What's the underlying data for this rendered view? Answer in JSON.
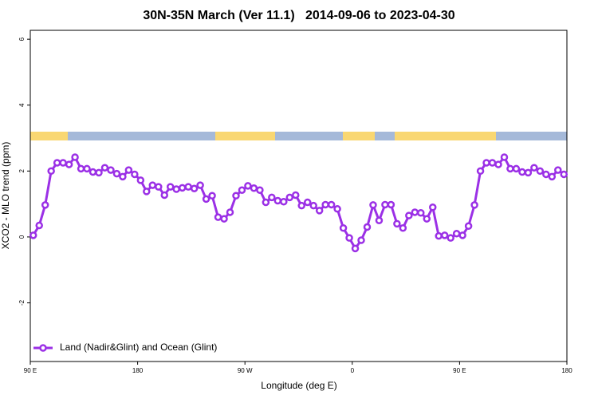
{
  "chart_data": {
    "type": "line",
    "title": "30N-35N March (Ver 11.1)   2014-09-06 to 2023-04-30",
    "x_label": "Longitude (deg E)",
    "y_label": "XCO2 - MLO trend (ppm)",
    "x": [
      92.5,
      97.5,
      102.5,
      107.5,
      112.5,
      117.5,
      122.5,
      127.5,
      132.5,
      137.5,
      142.5,
      147.5,
      152.5,
      157.5,
      162.5,
      167.5,
      172.5,
      177.5,
      182.5,
      187.5,
      192.5,
      197.5,
      202.5,
      207.5,
      212.5,
      217.5,
      222.5,
      227.5,
      232.5,
      237.5,
      242.5,
      247.5,
      252.5,
      257.5,
      262.5,
      267.5,
      272.5,
      277.5,
      282.5,
      287.5,
      292.5,
      297.5,
      302.5,
      307.5,
      312.5,
      317.5,
      322.5,
      327.5,
      332.5,
      337.5,
      342.5,
      347.5,
      352.5,
      357.5,
      362.5,
      367.5,
      372.5,
      377.5,
      382.5,
      387.5,
      392.5,
      397.5,
      402.5,
      407.5,
      412.5,
      417.5,
      422.5,
      427.5,
      432.5,
      437.5,
      442.5,
      447.5,
      452.5,
      457.5,
      462.5,
      467.5,
      472.5,
      477.5,
      482.5,
      487.5,
      492.5,
      497.5,
      502.5,
      507.5,
      512.5,
      517.5,
      522.5,
      527.5,
      532.5,
      537.5
    ],
    "series": [
      {
        "name": "Land (Nadir&Glint) and Ocean (Glint)",
        "color": "#9b30e6",
        "values": [
          0.05,
          0.35,
          0.97,
          2.0,
          2.25,
          2.25,
          2.2,
          2.42,
          2.07,
          2.07,
          1.97,
          1.95,
          2.1,
          2.03,
          1.92,
          1.83,
          2.03,
          1.9,
          1.72,
          1.38,
          1.57,
          1.52,
          1.27,
          1.52,
          1.45,
          1.49,
          1.52,
          1.47,
          1.57,
          1.15,
          1.25,
          0.6,
          0.55,
          0.75,
          1.25,
          1.42,
          1.55,
          1.48,
          1.42,
          1.05,
          1.2,
          1.1,
          1.07,
          1.2,
          1.27,
          0.95,
          1.05,
          0.95,
          0.8,
          0.98,
          0.98,
          0.85,
          0.27,
          -0.03,
          -0.35,
          -0.1,
          0.3,
          0.97,
          0.5,
          0.98,
          0.98,
          0.4,
          0.27,
          0.65,
          0.75,
          0.73,
          0.55,
          0.9,
          0.03,
          0.05,
          -0.03,
          0.1,
          0.05,
          0.33,
          0.97,
          2.0,
          2.25,
          2.25,
          2.2,
          2.42,
          2.07,
          2.07,
          1.97,
          1.95,
          2.1,
          2.0,
          1.9,
          1.83,
          2.03,
          1.9
        ]
      }
    ],
    "xlim": [
      90,
      540
    ],
    "xticks": [
      {
        "value": 90,
        "label": "90 E"
      },
      180,
      {
        "value": 270,
        "label": "90 W"
      },
      {
        "value": 360,
        "label": "0"
      },
      {
        "value": 450,
        "label": "90 E"
      },
      {
        "value": 540,
        "label": "180"
      }
    ],
    "ylim": [
      -3.78,
      6.27
    ],
    "yticks": [
      -2,
      0,
      2,
      4,
      6
    ],
    "grid": false,
    "legend": "bottom left"
  }
}
